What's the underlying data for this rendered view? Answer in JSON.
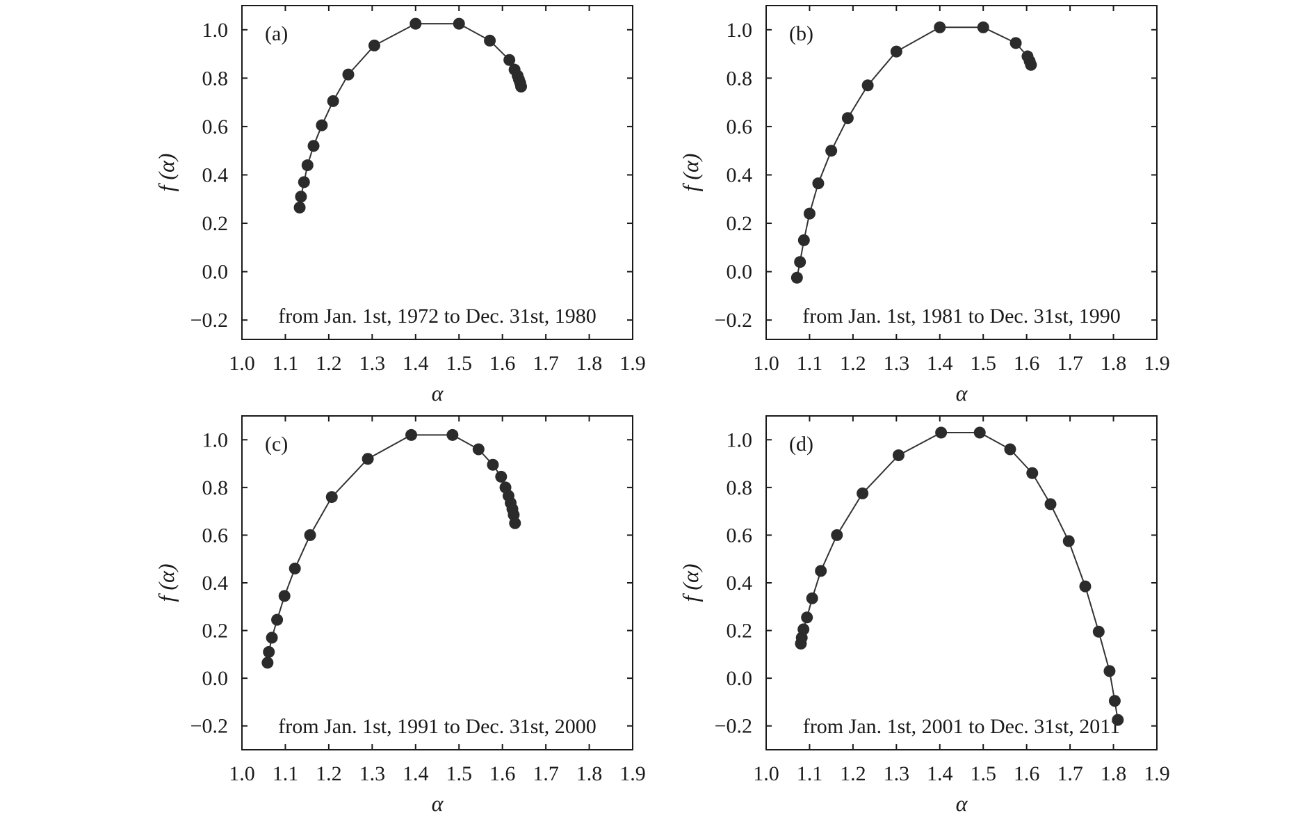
{
  "chart_data": [
    {
      "type": "line",
      "panel": "(a)",
      "annotation": "from Jan. 1st, 1972 to Dec. 31st, 1980",
      "xlabel": "α",
      "ylabel": "f (α)",
      "xlim": [
        1.0,
        1.9
      ],
      "ylim": [
        -0.28,
        1.1
      ],
      "xticks": [
        "1.0",
        "1.1",
        "1.2",
        "1.3",
        "1.4",
        "1.5",
        "1.6",
        "1.7",
        "1.8",
        "1.9"
      ],
      "yticks": [
        "−0.2",
        "0.0",
        "0.2",
        "0.4",
        "0.6",
        "0.8",
        "1.0"
      ],
      "series": [
        {
          "x": [
            1.133,
            1.136,
            1.143,
            1.151,
            1.165,
            1.184,
            1.21,
            1.245,
            1.305,
            1.4,
            1.5,
            1.571,
            1.616,
            1.628,
            1.635,
            1.638,
            1.641,
            1.643
          ],
          "y": [
            0.265,
            0.31,
            0.37,
            0.44,
            0.52,
            0.605,
            0.705,
            0.815,
            0.935,
            1.025,
            1.025,
            0.955,
            0.875,
            0.835,
            0.81,
            0.795,
            0.78,
            0.765
          ]
        }
      ]
    },
    {
      "type": "line",
      "panel": "(b)",
      "annotation": "from Jan. 1st, 1981 to Dec. 31st, 1990",
      "xlabel": "α",
      "ylabel": "f (α)",
      "xlim": [
        1.0,
        1.9
      ],
      "ylim": [
        -0.28,
        1.1
      ],
      "xticks": [
        "1.0",
        "1.1",
        "1.2",
        "1.3",
        "1.4",
        "1.5",
        "1.6",
        "1.7",
        "1.8",
        "1.9"
      ],
      "yticks": [
        "−0.2",
        "0.0",
        "0.2",
        "0.4",
        "0.6",
        "0.8",
        "1.0"
      ],
      "series": [
        {
          "x": [
            1.071,
            1.078,
            1.087,
            1.1,
            1.12,
            1.15,
            1.188,
            1.234,
            1.3,
            1.4,
            1.5,
            1.575,
            1.602,
            1.607,
            1.61
          ],
          "y": [
            -0.025,
            0.04,
            0.13,
            0.24,
            0.365,
            0.5,
            0.635,
            0.77,
            0.91,
            1.01,
            1.01,
            0.945,
            0.89,
            0.87,
            0.855
          ]
        }
      ]
    },
    {
      "type": "line",
      "panel": "(c)",
      "annotation": "from Jan. 1st, 1991 to Dec. 31st, 2000",
      "xlabel": "α",
      "ylabel": "f (α)",
      "xlim": [
        1.0,
        1.9
      ],
      "ylim": [
        -0.3,
        1.1
      ],
      "xticks": [
        "1.0",
        "1.1",
        "1.2",
        "1.3",
        "1.4",
        "1.5",
        "1.6",
        "1.7",
        "1.8",
        "1.9"
      ],
      "yticks": [
        "−0.2",
        "0.0",
        "0.2",
        "0.4",
        "0.6",
        "0.8",
        "1.0"
      ],
      "series": [
        {
          "x": [
            1.059,
            1.062,
            1.069,
            1.081,
            1.098,
            1.122,
            1.157,
            1.207,
            1.29,
            1.39,
            1.485,
            1.545,
            1.578,
            1.597,
            1.607,
            1.614,
            1.619,
            1.623,
            1.626,
            1.629
          ],
          "y": [
            0.065,
            0.11,
            0.17,
            0.245,
            0.345,
            0.46,
            0.6,
            0.76,
            0.92,
            1.02,
            1.02,
            0.96,
            0.895,
            0.845,
            0.8,
            0.765,
            0.735,
            0.71,
            0.685,
            0.65
          ]
        }
      ]
    },
    {
      "type": "line",
      "panel": "(d)",
      "annotation": "from Jan. 1st, 2001 to Dec. 31st, 2011",
      "xlabel": "α",
      "ylabel": "f (α)",
      "xlim": [
        1.0,
        1.9
      ],
      "ylim": [
        -0.3,
        1.1
      ],
      "xticks": [
        "1.0",
        "1.1",
        "1.2",
        "1.3",
        "1.4",
        "1.5",
        "1.6",
        "1.7",
        "1.8",
        "1.9"
      ],
      "yticks": [
        "−0.2",
        "0.0",
        "0.2",
        "0.4",
        "0.6",
        "0.8",
        "1.0"
      ],
      "series": [
        {
          "x": [
            1.08,
            1.082,
            1.086,
            1.094,
            1.106,
            1.126,
            1.163,
            1.222,
            1.305,
            1.403,
            1.492,
            1.562,
            1.613,
            1.655,
            1.697,
            1.735,
            1.766,
            1.791,
            1.803,
            1.81
          ],
          "y": [
            0.145,
            0.17,
            0.205,
            0.255,
            0.335,
            0.45,
            0.6,
            0.775,
            0.935,
            1.03,
            1.03,
            0.96,
            0.86,
            0.73,
            0.575,
            0.385,
            0.195,
            0.03,
            -0.095,
            -0.175
          ]
        }
      ]
    }
  ]
}
